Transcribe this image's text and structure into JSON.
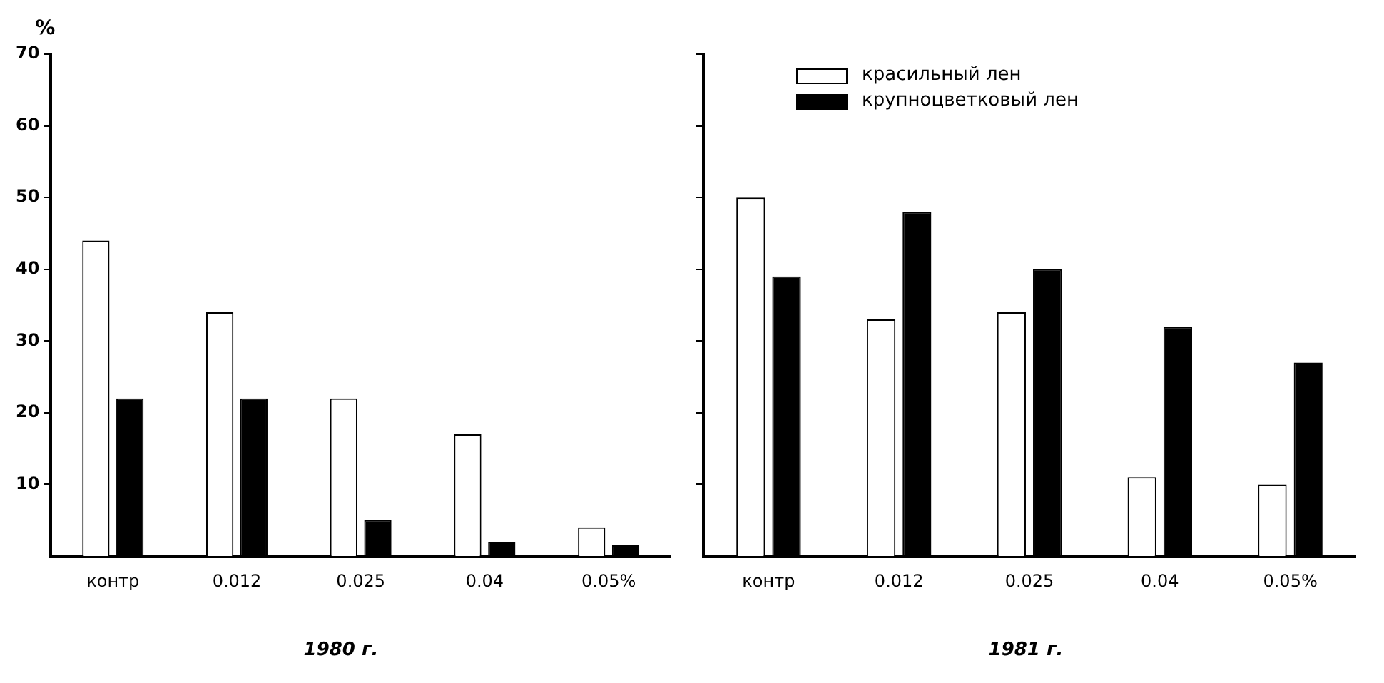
{
  "chart_data": [
    {
      "type": "bar",
      "title": "1980 г.",
      "ylabel": "%",
      "categories": [
        "контр",
        "0.012",
        "0.025",
        "0.04",
        "0.05%"
      ],
      "ylim": [
        0,
        70
      ],
      "yticks": [
        10,
        20,
        30,
        40,
        50,
        60,
        70
      ],
      "grid": false,
      "legend": false,
      "series": [
        {
          "color": "#ffffff",
          "values": [
            44,
            34,
            22,
            17,
            4
          ]
        },
        {
          "color": "#000000",
          "values": [
            22,
            22,
            5,
            2,
            1.5
          ]
        }
      ]
    },
    {
      "type": "bar",
      "title": "1981 г.",
      "categories": [
        "контр",
        "0.012",
        "0.025",
        "0.04",
        "0.05%"
      ],
      "ylim": [
        0,
        70
      ],
      "yticks": [
        {
          "value": 10,
          "label": null
        },
        {
          "value": 20,
          "label": null
        },
        {
          "value": 30,
          "label": null
        },
        {
          "value": 40,
          "label": null
        },
        {
          "value": 50,
          "label": null
        },
        {
          "value": 60,
          "label": null
        },
        {
          "value": 70,
          "label": null
        }
      ],
      "tick_labels": "x",
      "grid": false,
      "legend": "top left",
      "series": [
        {
          "name": "красильный лен",
          "color": "#ffffff",
          "values": [
            50,
            33,
            34,
            11,
            10
          ]
        },
        {
          "name": "крупноцветковый лен",
          "color": "#000000",
          "values": [
            39,
            48,
            40,
            32,
            27
          ]
        }
      ]
    }
  ]
}
